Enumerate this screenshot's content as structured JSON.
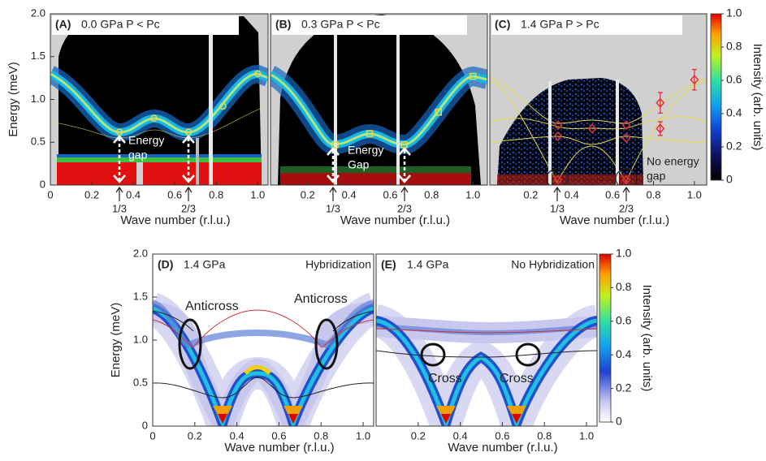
{
  "chart_data": [
    {
      "type": "heatmap",
      "label": "(A)",
      "title": "0.0 GPa   P < Pc",
      "xlabel": "Wave number (r.l.u.)",
      "ylabel": "Energy (meV)",
      "xlim": [
        0,
        1.05
      ],
      "ylim": [
        0,
        2
      ],
      "xticks": [
        0,
        0.2,
        0.4,
        0.6,
        0.8,
        {
          "value": 1,
          "label": "1.0"
        }
      ],
      "yticks": [
        0,
        0.5,
        {
          "value": 1,
          "label": "1.0"
        },
        1.5,
        {
          "value": 2,
          "label": "2.0"
        }
      ],
      "annotations": [
        "Energy",
        "gap",
        "1/3",
        "2/3"
      ],
      "marker": "circle",
      "color": "#e6d84a",
      "points": {
        "x": [
          0.333,
          0.5,
          0.667,
          0.833,
          1.0
        ],
        "y": [
          0.62,
          0.78,
          0.62,
          0.92,
          1.3
        ]
      }
    },
    {
      "type": "heatmap",
      "label": "(B)",
      "title": "0.3 GPa   P < Pc",
      "xlabel": "Wave number (r.l.u.)",
      "xlim": [
        0.02,
        1.07
      ],
      "ylim": [
        0,
        2
      ],
      "xticks": [
        0.2,
        0.4,
        0.6,
        0.8,
        {
          "value": 1,
          "label": "1.0"
        }
      ],
      "annotations": [
        "Energy",
        "Gap",
        "1/3",
        "2/3"
      ],
      "marker": "square",
      "color": "#e6d84a",
      "points": {
        "x": [
          0.333,
          0.5,
          0.667,
          0.833,
          1.0
        ],
        "y": [
          0.47,
          0.6,
          0.47,
          0.85,
          1.27
        ]
      }
    },
    {
      "type": "heatmap",
      "label": "(C)",
      "title": "1.4 GPa   P > Pc",
      "xlabel": "Wave number (r.l.u.)",
      "xlim": [
        0,
        1.06
      ],
      "ylim": [
        0,
        2
      ],
      "xticks": [
        0.2,
        0.4,
        0.6,
        0.8,
        {
          "value": 1,
          "label": "1.0"
        }
      ],
      "annotations": [
        "No energy",
        "gap",
        "1/3",
        "2/3"
      ],
      "marker": "diamond",
      "color": "#e0303a",
      "points": {
        "x": [
          0.333,
          0.333,
          0.5,
          0.667,
          0.667,
          0.833,
          0.833,
          1.0,
          0.333,
          0.667
        ],
        "y": [
          0.7,
          0.57,
          0.66,
          0.7,
          0.55,
          0.96,
          0.66,
          1.23,
          0.06,
          0.06
        ],
        "errors": [
          null,
          null,
          null,
          null,
          null,
          0.12,
          0.08,
          0.12,
          null,
          null
        ]
      }
    },
    {
      "type": "colorbar",
      "label": "Intensity (arb. units)",
      "scheme": "black",
      "ylim": [
        0,
        1
      ],
      "yticks": [
        0,
        0.2,
        0.4,
        0.6,
        0.8,
        {
          "value": 1,
          "label": "1.0"
        }
      ]
    },
    {
      "type": "heatmap",
      "label": "(D)",
      "title": "1.4 GPa",
      "note": "Hybridization",
      "xlabel": "Wave number (r.l.u.)",
      "ylabel": "Energy (meV)",
      "xlim": [
        0,
        1.05
      ],
      "ylim": [
        0,
        2
      ],
      "xticks": [
        0,
        0.2,
        0.4,
        0.6,
        0.8,
        {
          "value": 1,
          "label": "1.0"
        }
      ],
      "yticks": [
        0,
        0.5,
        {
          "value": 1,
          "label": "1.0"
        },
        1.5,
        {
          "value": 2,
          "label": "2.0"
        }
      ],
      "annotations": [
        "Anticross",
        "Anticross"
      ]
    },
    {
      "type": "heatmap",
      "label": "(E)",
      "title": "1.4 GPa",
      "note": "No Hybridization",
      "xlabel": "Wave number (r.l.u.)",
      "xlim": [
        0,
        1.05
      ],
      "ylim": [
        0,
        2
      ],
      "xticks": [
        0.2,
        0.4,
        0.6,
        0.8,
        {
          "value": 1,
          "label": "1.0"
        }
      ],
      "annotations": [
        "Cross",
        "Cross"
      ]
    },
    {
      "type": "colorbar",
      "label": "Intensity (arb. units)",
      "scheme": "white",
      "ylim": [
        0,
        1
      ],
      "yticks": [
        0,
        0.2,
        0.4,
        0.6,
        0.8,
        {
          "value": 1,
          "label": "1.0"
        }
      ]
    }
  ]
}
